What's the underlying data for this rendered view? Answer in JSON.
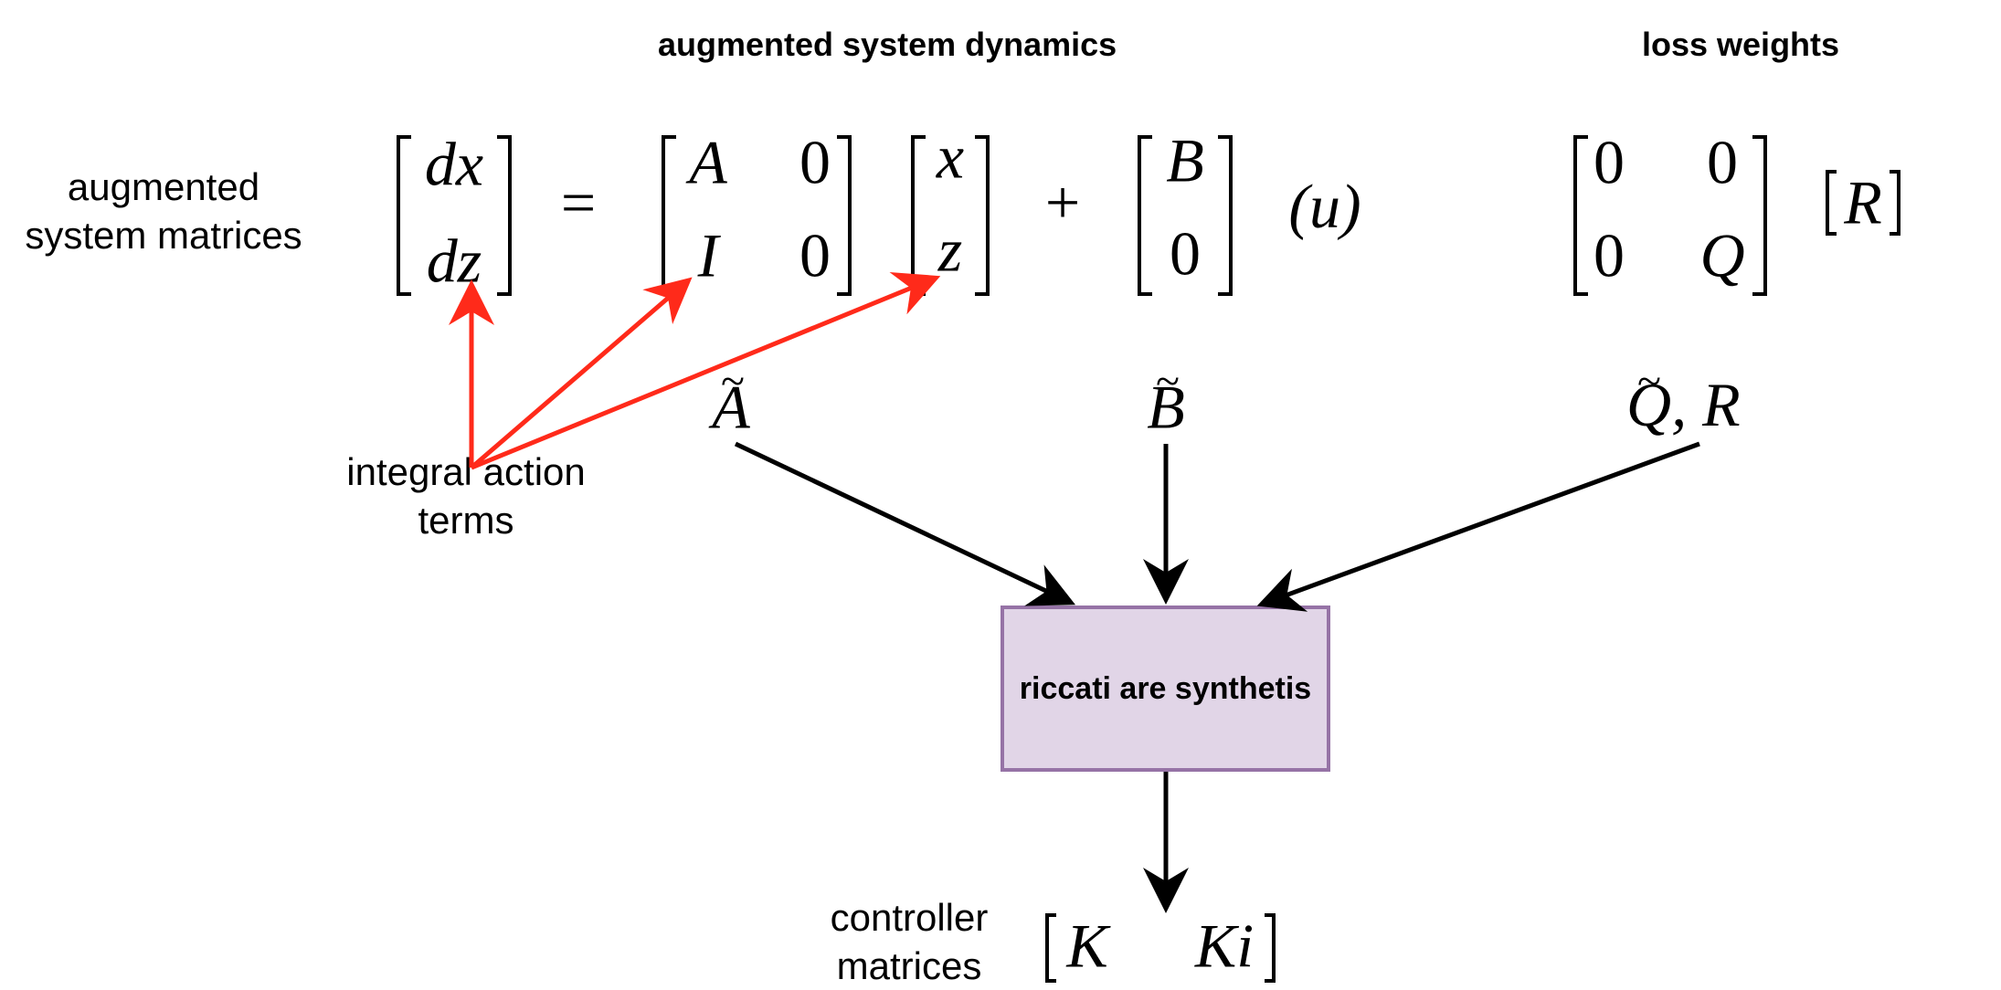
{
  "headers": {
    "dynamics": "augmented system dynamics",
    "loss": "loss weights"
  },
  "labels": {
    "augmented_line1": "augmented",
    "augmented_line2": "system matrices",
    "integral_line1": "integral action",
    "integral_line2": "terms",
    "controller_line1": "controller",
    "controller_line2": "matrices"
  },
  "equation": {
    "lhs_top": "dx",
    "lhs_bottom": "dz",
    "equals": "=",
    "a11": "A",
    "a12": "0",
    "a21": "I",
    "a22": "0",
    "state_top": "x",
    "state_bottom": "z",
    "plus": "+",
    "b_top": "B",
    "b_bottom": "0",
    "input": "(u)"
  },
  "loss_matrix": {
    "q11": "0",
    "q12": "0",
    "q21": "0",
    "q22": "Q",
    "r": "R"
  },
  "symbols": {
    "a_tilde": "A",
    "b_tilde": "B",
    "q_tilde": "Q",
    "q_tilde_suffix": ", R"
  },
  "process_box": {
    "label": "riccati are synthetis"
  },
  "output": {
    "k": "K",
    "ki": "Ki"
  },
  "colors": {
    "arrow_black": "#000000",
    "arrow_red": "#ff2a1a",
    "box_fill": "#e1d5e7",
    "box_border": "#9673a6"
  }
}
